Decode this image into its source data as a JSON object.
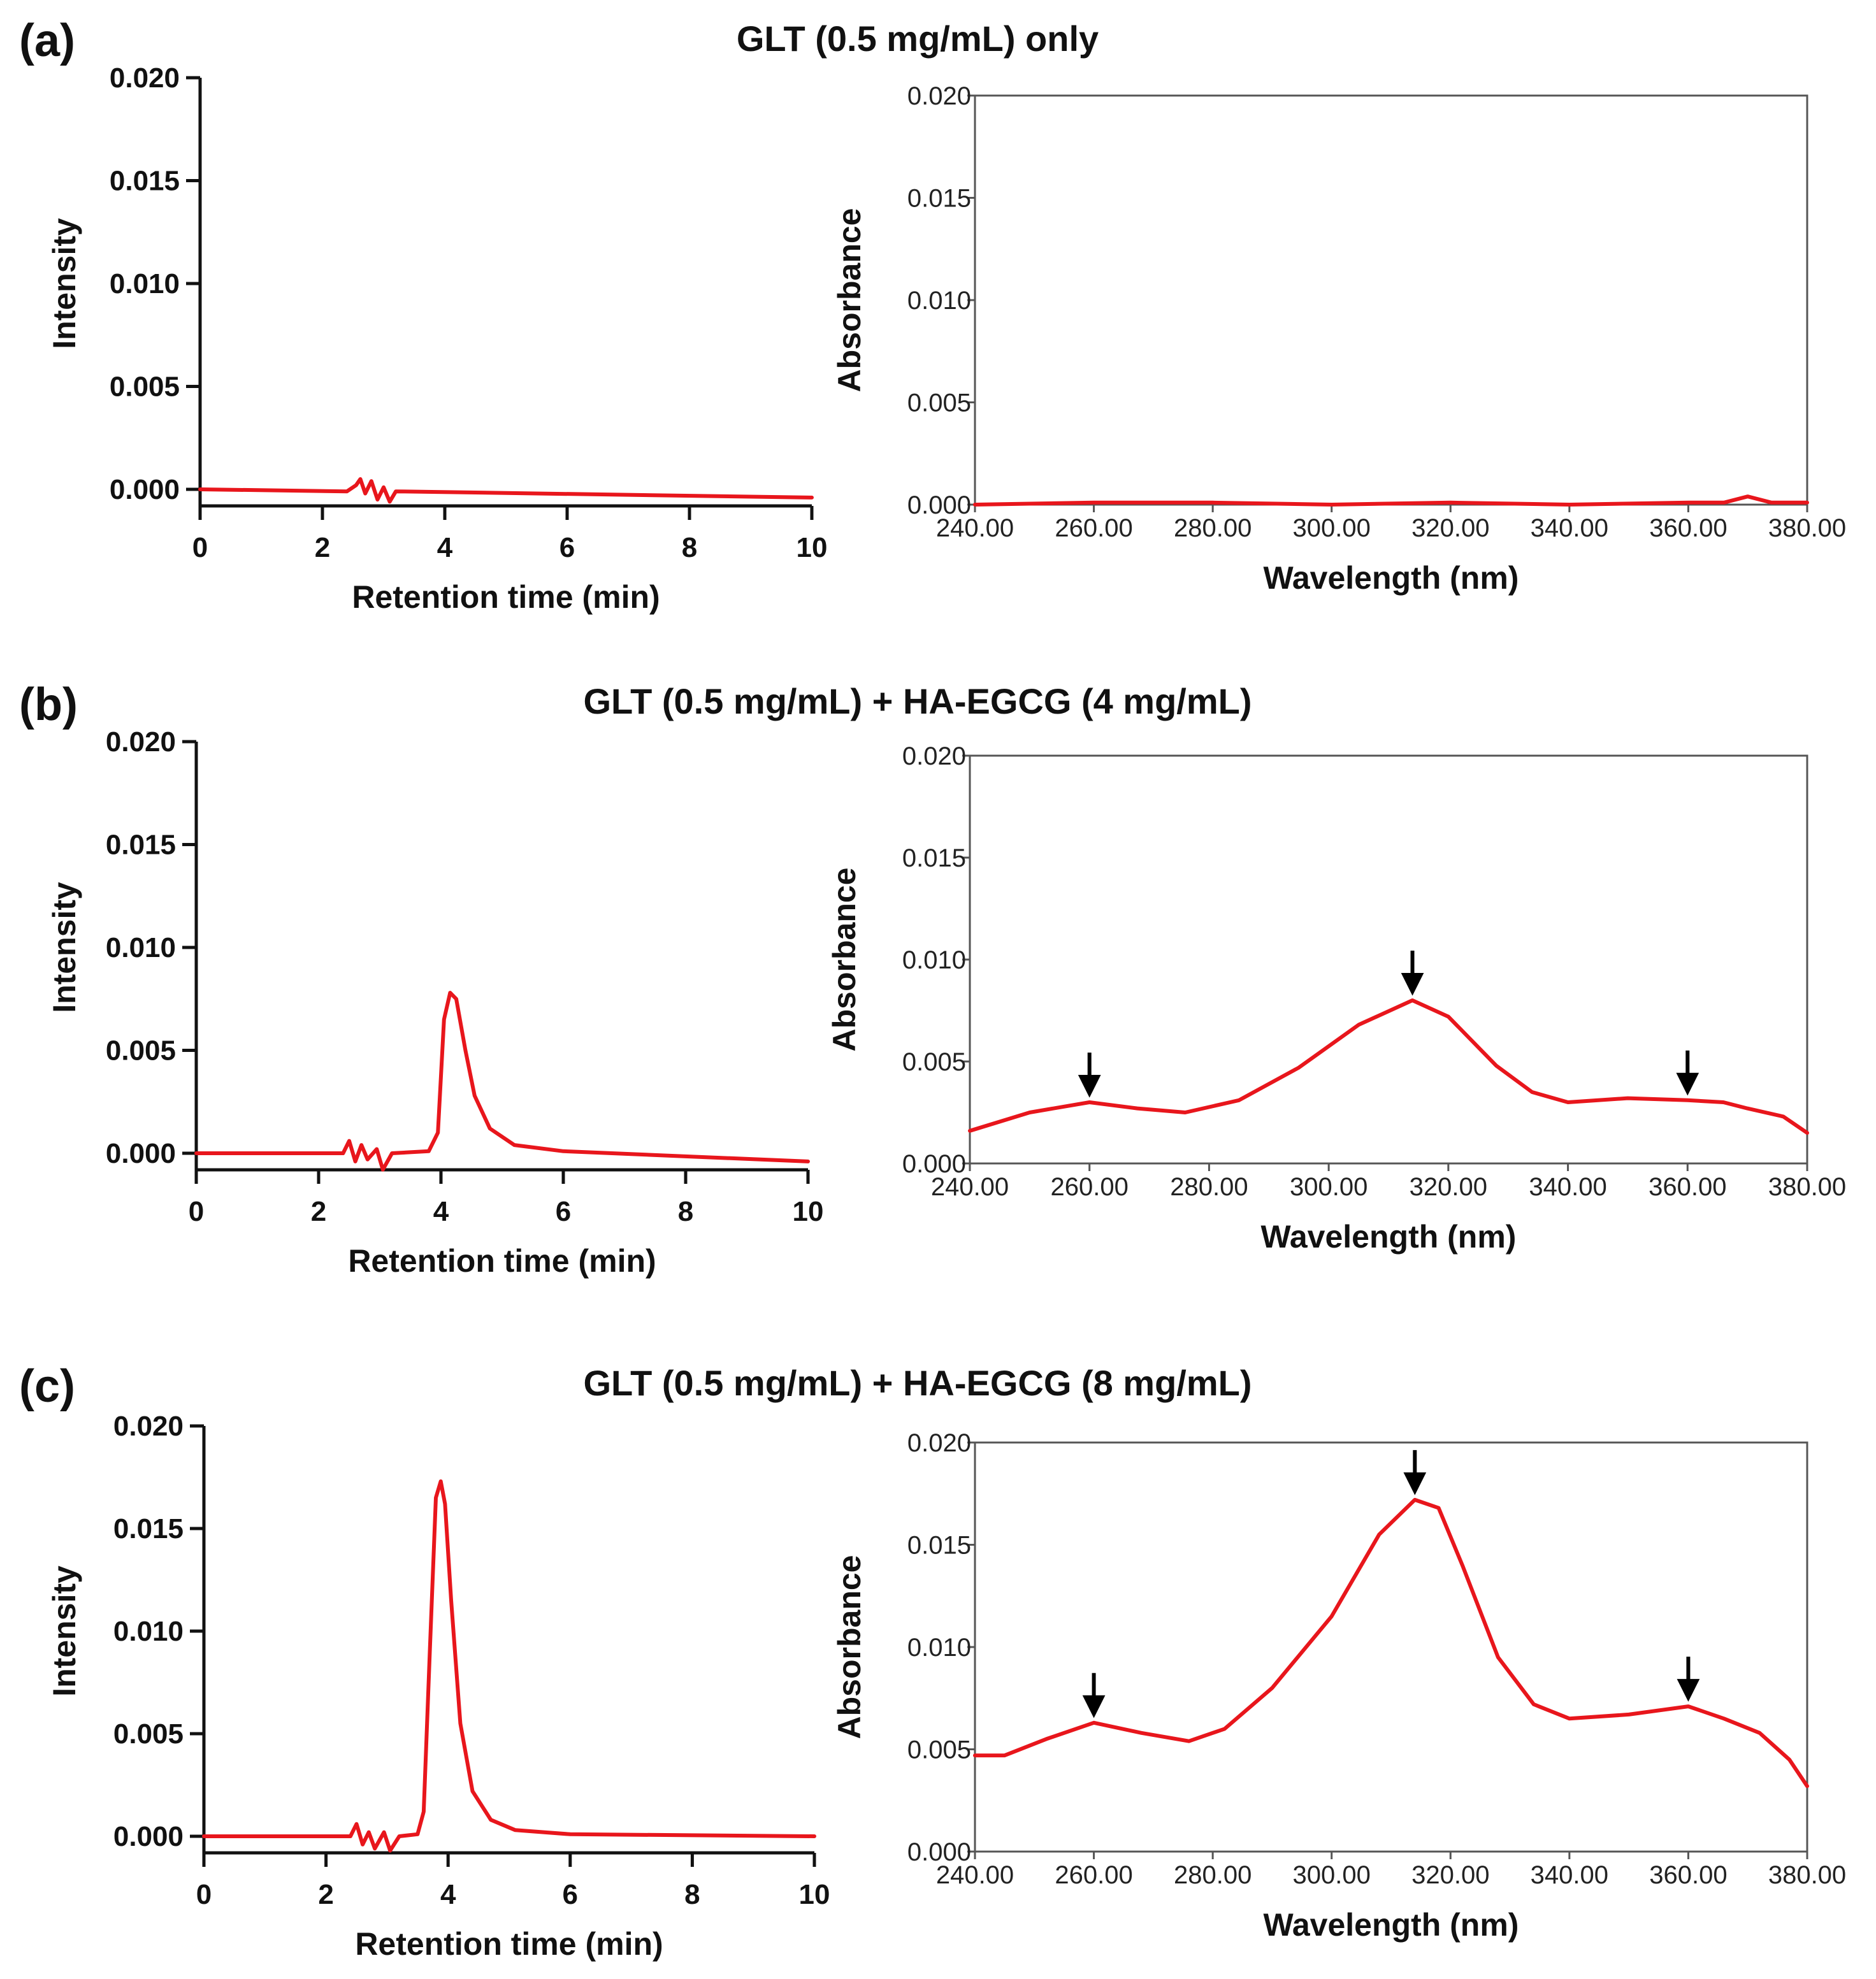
{
  "colors": {
    "trace": "#e8161c",
    "axis": "#111111",
    "frame": "#555555",
    "arrow": "#000000"
  },
  "chart_data": [
    {
      "panel": "(a)",
      "title": "GLT (0.5 mg/mL) only",
      "type": "line",
      "kind": "chromatogram",
      "xlabel": "Retention time (min)",
      "ylabel": "Intensity",
      "xlim": [
        0,
        10
      ],
      "ylim": [
        0,
        0.02
      ],
      "xticks": [
        "0",
        "2",
        "4",
        "6",
        "8",
        "10"
      ],
      "yticks": [
        "0.000",
        "0.005",
        "0.010",
        "0.015",
        "0.020"
      ],
      "x": [
        0,
        2.4,
        2.55,
        2.62,
        2.7,
        2.8,
        2.9,
        3.0,
        3.1,
        3.2,
        10
      ],
      "y": [
        0.0,
        -0.0001,
        0.0002,
        0.0005,
        -0.0002,
        0.0004,
        -0.0005,
        0.0001,
        -0.0006,
        -0.0001,
        -0.0004
      ],
      "arrows": []
    },
    {
      "panel": "(a)",
      "title": "GLT (0.5 mg/mL) only",
      "type": "line",
      "kind": "uv-spectrum",
      "xlabel": "Wavelength (nm)",
      "ylabel": "Absorbance",
      "xlim": [
        240,
        380
      ],
      "ylim": [
        0,
        0.02
      ],
      "xticks": [
        "240.00",
        "260.00",
        "280.00",
        "300.00",
        "320.00",
        "340.00",
        "360.00",
        "380.00"
      ],
      "yticks": [
        "0.000",
        "0.005",
        "0.010",
        "0.015",
        "0.020"
      ],
      "x": [
        240,
        260,
        280,
        300,
        320,
        340,
        360,
        366,
        370,
        374,
        380
      ],
      "y": [
        0.0,
        0.0001,
        0.0001,
        0.0,
        0.0001,
        0.0,
        0.0001,
        0.0001,
        0.0004,
        0.0001,
        0.0001
      ],
      "arrows": []
    },
    {
      "panel": "(b)",
      "title": "GLT (0.5 mg/mL) + HA-EGCG (4 mg/mL)",
      "type": "line",
      "kind": "chromatogram",
      "xlabel": "Retention time (min)",
      "ylabel": "Intensity",
      "xlim": [
        0,
        10
      ],
      "ylim": [
        0,
        0.02
      ],
      "xticks": [
        "0",
        "2",
        "4",
        "6",
        "8",
        "10"
      ],
      "yticks": [
        "0.000",
        "0.005",
        "0.010",
        "0.015",
        "0.020"
      ],
      "x": [
        0,
        2.4,
        2.5,
        2.6,
        2.7,
        2.8,
        2.95,
        3.05,
        3.2,
        3.8,
        3.95,
        4.05,
        4.15,
        4.25,
        4.4,
        4.55,
        4.8,
        5.2,
        6.0,
        10
      ],
      "y": [
        0.0,
        0.0,
        0.0006,
        -0.0004,
        0.0004,
        -0.0003,
        0.0002,
        -0.0008,
        0.0,
        0.0001,
        0.001,
        0.0065,
        0.0078,
        0.0075,
        0.005,
        0.0028,
        0.0012,
        0.0004,
        0.0001,
        -0.0004
      ],
      "arrows": []
    },
    {
      "panel": "(b)",
      "title": "GLT (0.5 mg/mL) + HA-EGCG (4 mg/mL)",
      "type": "line",
      "kind": "uv-spectrum",
      "xlabel": "Wavelength (nm)",
      "ylabel": "Absorbance",
      "xlim": [
        240,
        380
      ],
      "ylim": [
        0,
        0.02
      ],
      "xticks": [
        "240.00",
        "260.00",
        "280.00",
        "300.00",
        "320.00",
        "340.00",
        "360.00",
        "380.00"
      ],
      "yticks": [
        "0.000",
        "0.005",
        "0.010",
        "0.015",
        "0.020"
      ],
      "x": [
        240,
        250,
        260,
        268,
        276,
        285,
        295,
        305,
        314,
        320,
        328,
        334,
        340,
        350,
        360,
        366,
        370,
        376,
        380
      ],
      "y": [
        0.0016,
        0.0025,
        0.003,
        0.0027,
        0.0025,
        0.0031,
        0.0047,
        0.0068,
        0.008,
        0.0072,
        0.0048,
        0.0035,
        0.003,
        0.0032,
        0.0031,
        0.003,
        0.0027,
        0.0023,
        0.0015
      ],
      "arrows": [
        260,
        314,
        360
      ]
    },
    {
      "panel": "(c)",
      "title": "GLT (0.5 mg/mL) + HA-EGCG (8 mg/mL)",
      "type": "line",
      "kind": "chromatogram",
      "xlabel": "Retention time (min)",
      "ylabel": "Intensity",
      "xlim": [
        0,
        10
      ],
      "ylim": [
        0,
        0.02
      ],
      "xticks": [
        "0",
        "2",
        "4",
        "6",
        "8",
        "10"
      ],
      "yticks": [
        "0.000",
        "0.005",
        "0.010",
        "0.015",
        "0.020"
      ],
      "x": [
        0,
        2.4,
        2.5,
        2.6,
        2.7,
        2.8,
        2.95,
        3.05,
        3.2,
        3.5,
        3.6,
        3.7,
        3.8,
        3.88,
        3.95,
        4.05,
        4.2,
        4.4,
        4.7,
        5.1,
        6.0,
        10
      ],
      "y": [
        0.0,
        0.0,
        0.0006,
        -0.0004,
        0.0002,
        -0.0006,
        0.0002,
        -0.0007,
        0.0,
        0.0001,
        0.0012,
        0.009,
        0.0165,
        0.0173,
        0.0162,
        0.0115,
        0.0055,
        0.0022,
        0.0008,
        0.0003,
        0.0001,
        0.0
      ],
      "arrows": []
    },
    {
      "panel": "(c)",
      "title": "GLT (0.5 mg/mL) + HA-EGCG (8 mg/mL)",
      "type": "line",
      "kind": "uv-spectrum",
      "xlabel": "Wavelength (nm)",
      "ylabel": "Absorbance",
      "xlim": [
        240,
        380
      ],
      "ylim": [
        0,
        0.02
      ],
      "xticks": [
        "240.00",
        "260.00",
        "280.00",
        "300.00",
        "320.00",
        "340.00",
        "360.00",
        "380.00"
      ],
      "yticks": [
        "0.000",
        "0.005",
        "0.010",
        "0.015",
        "0.020"
      ],
      "x": [
        240,
        245,
        252,
        260,
        268,
        276,
        282,
        290,
        300,
        308,
        314,
        318,
        322,
        328,
        334,
        340,
        350,
        360,
        366,
        372,
        377,
        380
      ],
      "y": [
        0.0047,
        0.0047,
        0.0055,
        0.0063,
        0.0058,
        0.0054,
        0.006,
        0.008,
        0.0115,
        0.0155,
        0.0172,
        0.0168,
        0.014,
        0.0095,
        0.0072,
        0.0065,
        0.0067,
        0.0071,
        0.0065,
        0.0058,
        0.0045,
        0.0032
      ],
      "arrows": [
        260,
        314,
        360
      ]
    }
  ]
}
